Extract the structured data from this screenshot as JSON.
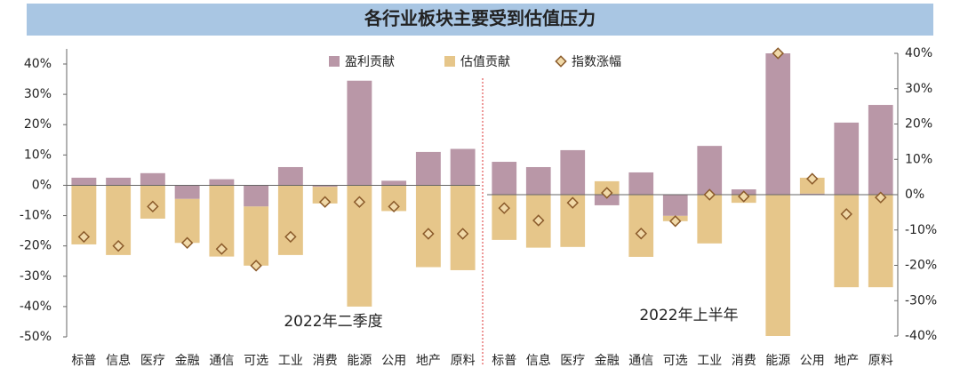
{
  "title": "各行业板块主要受到估值压力",
  "chart_data": [
    {
      "type": "bar",
      "annotation": "2022年二季度",
      "categories": [
        "标普",
        "信息",
        "医疗",
        "金融",
        "通信",
        "可选",
        "工业",
        "消费",
        "能源",
        "公用",
        "地产",
        "原料"
      ],
      "series": [
        {
          "name": "盈利贡献",
          "color": "#b997a7",
          "values": [
            2.5,
            2.5,
            4,
            -4.5,
            2,
            -7,
            6,
            -0.5,
            34.5,
            1.5,
            11,
            12
          ]
        },
        {
          "name": "估值贡献",
          "color": "#e6c68a",
          "values": [
            -19.5,
            -23,
            -11,
            -14.5,
            -23.5,
            -19.5,
            -23,
            -5.5,
            -40,
            -8.5,
            -27,
            -28
          ]
        },
        {
          "name": "指数涨幅",
          "color": "#8a5a2a",
          "values": [
            -17,
            -20,
            -7,
            -19,
            -21,
            -26.5,
            -17,
            -5.5,
            -5.5,
            -7,
            -16,
            -16
          ]
        }
      ],
      "ylim": [
        -50,
        45
      ],
      "yticks": [
        {
          "value": -50,
          "label": "-50%"
        },
        {
          "value": -40,
          "label": "-40%"
        },
        {
          "value": -30,
          "label": "-30%"
        },
        {
          "value": -20,
          "label": "-20%"
        },
        {
          "value": -10,
          "label": "-10%"
        },
        {
          "value": 0,
          "label": "0%"
        },
        {
          "value": 10,
          "label": "10%"
        },
        {
          "value": 20,
          "label": "20%"
        },
        {
          "value": 30,
          "label": "30%"
        },
        {
          "value": 40,
          "label": "40%"
        }
      ]
    },
    {
      "type": "bar",
      "annotation": "2022年上半年",
      "categories": [
        "标普",
        "信息",
        "医疗",
        "金融",
        "通信",
        "可选",
        "工业",
        "消费",
        "能源",
        "公用",
        "地产",
        "原料"
      ],
      "series": [
        {
          "name": "盈利贡献",
          "color": "#b997a7",
          "values": [
            9.3,
            7.8,
            12.6,
            -3,
            6.3,
            -6,
            13.8,
            1.5,
            40,
            0.3,
            20.4,
            25.4
          ]
        },
        {
          "name": "估值贡献",
          "color": "#e6c68a",
          "values": [
            -12.8,
            -15,
            -14.8,
            3.8,
            -17.6,
            -1.5,
            -13.8,
            -2.3,
            -40,
            4.5,
            -26.2,
            -26.2
          ]
        },
        {
          "name": "指数涨幅",
          "color": "#8a5a2a",
          "values": [
            -3.8,
            -7.3,
            -2.3,
            0.5,
            -11,
            -7.5,
            0,
            -0.5,
            40,
            4.5,
            -5.5,
            -0.8
          ]
        }
      ],
      "ylim": [
        -40,
        40
      ],
      "yticks": [
        {
          "value": -40,
          "label": "-40%"
        },
        {
          "value": -30,
          "label": "-30%"
        },
        {
          "value": -20,
          "label": "-20%"
        },
        {
          "value": -10,
          "label": "-10%"
        },
        {
          "value": 0,
          "label": "0%"
        },
        {
          "value": 10,
          "label": "10%"
        },
        {
          "value": 20,
          "label": "20%"
        },
        {
          "value": 30,
          "label": "30%"
        },
        {
          "value": 40,
          "label": "40%"
        }
      ]
    }
  ]
}
